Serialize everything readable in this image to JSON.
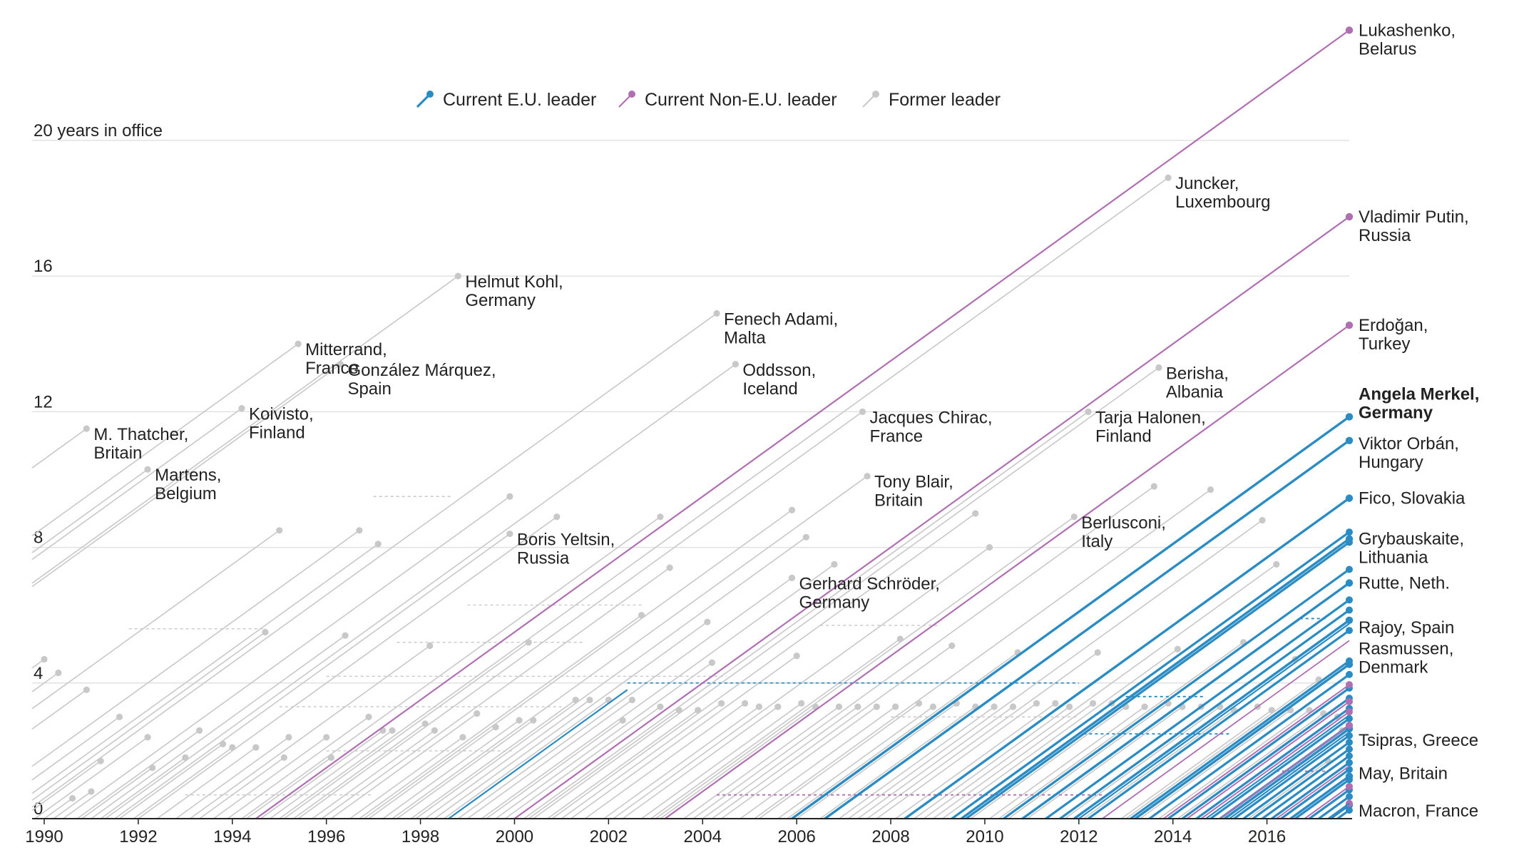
{
  "chart_data": {
    "type": "line",
    "title": "",
    "xlabel": "",
    "ylabel": "",
    "ylabel_top": "20 years in office",
    "x_range": [
      1990,
      2017.75
    ],
    "y_range": [
      0,
      23.3
    ],
    "current_date": 2017.75,
    "grid": true,
    "x_ticks": [
      "1990",
      "1992",
      "1994",
      "1996",
      "1998",
      "2000",
      "2002",
      "2004",
      "2006",
      "2008",
      "2010",
      "2012",
      "2014",
      "2016"
    ],
    "y_ticks": [
      {
        "v": 0,
        "label": "0"
      },
      {
        "v": 4,
        "label": "4"
      },
      {
        "v": 8,
        "label": "8"
      },
      {
        "v": 12,
        "label": "12"
      },
      {
        "v": 16,
        "label": "16"
      },
      {
        "v": 20,
        "label": ""
      }
    ],
    "legend": [
      {
        "key": "eu",
        "label": "Current E.U. leader",
        "color": "#2b8cc4"
      },
      {
        "key": "non_eu",
        "label": "Current Non-E.U. leader",
        "color": "#b06fb2"
      },
      {
        "key": "former",
        "label": "Former leader",
        "color": "#c8c8c8"
      }
    ],
    "colors": {
      "eu": "#2b8cc4",
      "non_eu": "#b06fb2",
      "former": "#c8c8c8"
    },
    "series": [
      {
        "name": "Lukashenko, Belarus",
        "lines": [
          "Lukashenko,",
          "Belarus"
        ],
        "group": "non_eu",
        "start": 1994.5,
        "end": 2017.75,
        "bold": false
      },
      {
        "name": "Vladimir Putin, Russia",
        "lines": [
          "Vladimir Putin,",
          "Russia"
        ],
        "group": "non_eu",
        "start": 2000.0,
        "end": 2017.75,
        "bold": false
      },
      {
        "name": "Erdoğan, Turkey",
        "lines": [
          "Erdoğan,",
          "Turkey"
        ],
        "group": "non_eu",
        "start": 2003.2,
        "end": 2017.75,
        "bold": false
      },
      {
        "name": "Angela Merkel, Germany",
        "lines": [
          "Angela Merkel,",
          "Germany"
        ],
        "group": "eu",
        "start": 2005.9,
        "end": 2017.75,
        "bold": true
      },
      {
        "name": "Viktor Orbán, Hungary",
        "lines": [
          "Viktor Orbán,",
          "Hungary"
        ],
        "group": "eu",
        "start": 2006.6,
        "end": 2017.75,
        "bold": false
      },
      {
        "name": "Fico, Slovakia",
        "lines": [
          "Fico, Slovakia"
        ],
        "group": "eu",
        "start": 2008.3,
        "end": 2017.75,
        "bold": false
      },
      {
        "name": "Grybauskaite, Lithuania",
        "lines": [
          "Grybauskaite,",
          "Lithuania"
        ],
        "group": "eu",
        "start": 2009.5,
        "end": 2017.75,
        "bold": false
      },
      {
        "name": "Rutte, Neth.",
        "lines": [
          "Rutte, Neth."
        ],
        "group": "eu",
        "start": 2010.8,
        "end": 2017.75,
        "bold": false
      },
      {
        "name": "Rajoy, Spain",
        "lines": [
          "Rajoy, Spain"
        ],
        "group": "eu",
        "start": 2011.9,
        "end": 2017.75,
        "bold": false
      },
      {
        "name": "Rasmussen, Denmark",
        "lines": [
          "Rasmussen,",
          "Denmark"
        ],
        "group": "eu",
        "start": 2013.2,
        "end": 2017.75,
        "bold": false
      },
      {
        "name": "Tsipras, Greece",
        "lines": [
          "Tsipras, Greece"
        ],
        "group": "eu",
        "start": 2015.1,
        "end": 2017.75,
        "bold": false
      },
      {
        "name": "May, Britain",
        "lines": [
          "May, Britain"
        ],
        "group": "eu",
        "start": 2016.5,
        "end": 2017.75,
        "bold": false
      },
      {
        "name": "Macron, France",
        "lines": [
          "Macron, France"
        ],
        "group": "eu",
        "start": 2017.35,
        "end": 2017.75,
        "bold": false
      },
      {
        "name": "M. Thatcher, Britain",
        "lines": [
          "M. Thatcher,",
          "Britain"
        ],
        "group": "former",
        "start": 1979.4,
        "end": 1990.9,
        "bold": false
      },
      {
        "name": "Martens, Belgium",
        "lines": [
          "Martens,",
          "Belgium"
        ],
        "group": "former",
        "start": 1981.9,
        "end": 1992.2,
        "bold": false
      },
      {
        "name": "Koivisto, Finland",
        "lines": [
          "Koivisto,",
          "Finland"
        ],
        "group": "former",
        "start": 1982.1,
        "end": 1994.2,
        "bold": false
      },
      {
        "name": "Mitterrand, France",
        "lines": [
          "Mitterrand,",
          "France"
        ],
        "group": "former",
        "start": 1981.4,
        "end": 1995.4,
        "bold": false
      },
      {
        "name": "González Márquez, Spain",
        "lines": [
          "González Márquez,",
          "Spain"
        ],
        "group": "former",
        "start": 1982.9,
        "end": 1996.3,
        "bold": false
      },
      {
        "name": "Helmut Kohl, Germany",
        "lines": [
          "Helmut Kohl,",
          "Germany"
        ],
        "group": "former",
        "start": 1982.8,
        "end": 1998.8,
        "bold": false
      },
      {
        "name": "Boris Yeltsin, Russia",
        "lines": [
          "Boris Yeltsin,",
          "Russia"
        ],
        "group": "former",
        "start": 1991.5,
        "end": 1999.9,
        "bold": false
      },
      {
        "name": "Fenech Adami, Malta",
        "lines": [
          "Fenech Adami,",
          "Malta"
        ],
        "group": "former",
        "start": 1989.4,
        "end": 2004.3,
        "bold": false
      },
      {
        "name": "Oddsson, Iceland",
        "lines": [
          "Oddsson,",
          "Iceland"
        ],
        "group": "former",
        "start": 1991.3,
        "end": 2004.7,
        "bold": false
      },
      {
        "name": "Gerhard Schröder, Germany",
        "lines": [
          "Gerhard Schröder,",
          "Germany"
        ],
        "group": "former",
        "start": 1998.8,
        "end": 2005.9,
        "bold": false
      },
      {
        "name": "Jacques Chirac, France",
        "lines": [
          "Jacques Chirac,",
          "France"
        ],
        "group": "former",
        "start": 1995.4,
        "end": 2007.4,
        "bold": false
      },
      {
        "name": "Tony Blair, Britain",
        "lines": [
          "Tony Blair,",
          "Britain"
        ],
        "group": "former",
        "start": 1997.4,
        "end": 2007.5,
        "bold": false
      },
      {
        "name": "Berlusconi, Italy",
        "lines": [
          "Berlusconi,",
          "Italy"
        ],
        "group": "former",
        "start": 2003.0,
        "end": 2011.9,
        "bold": false
      },
      {
        "name": "Tarja Halonen, Finland",
        "lines": [
          "Tarja Halonen,",
          "Finland"
        ],
        "group": "former",
        "start": 2000.2,
        "end": 2012.2,
        "bold": false
      },
      {
        "name": "Berisha, Albania",
        "lines": [
          "Berisha,",
          "Albania"
        ],
        "group": "former",
        "start": 2000.4,
        "end": 2013.7,
        "bold": false
      },
      {
        "name": "Juncker, Luxembourg",
        "lines": [
          "Juncker,",
          "Luxembourg"
        ],
        "group": "former",
        "start": 1995.0,
        "end": 2013.9,
        "bold": false
      }
    ],
    "dashed_gaps": [
      {
        "group": "former",
        "x0": 1997.0,
        "x1": 1998.7,
        "y": 9.5
      },
      {
        "group": "former",
        "x0": 1991.8,
        "x1": 1994.7,
        "y": 5.6
      },
      {
        "group": "former",
        "x0": 1999.0,
        "x1": 2002.7,
        "y": 6.3
      },
      {
        "group": "former",
        "x0": 1997.5,
        "x1": 2001.5,
        "y": 5.2
      },
      {
        "group": "former",
        "x0": 1996.0,
        "x1": 2004.5,
        "y": 4.2
      },
      {
        "group": "former",
        "x0": 1995.0,
        "x1": 2001.0,
        "y": 3.3
      },
      {
        "group": "former",
        "x0": 2006.5,
        "x1": 2009.0,
        "y": 5.7
      },
      {
        "group": "former",
        "x0": 2004.5,
        "x1": 2009.5,
        "y": 4.0
      },
      {
        "group": "former",
        "x0": 1996.0,
        "x1": 2000.0,
        "y": 2.0
      },
      {
        "group": "former",
        "x0": 1993.0,
        "x1": 1997.0,
        "y": 0.7
      },
      {
        "group": "former",
        "x0": 2008.0,
        "x1": 2012.0,
        "y": 3.0
      },
      {
        "group": "eu",
        "x0": 2002.4,
        "x1": 2012.0,
        "y": 4.0
      },
      {
        "group": "eu",
        "x0": 2013.0,
        "x1": 2014.7,
        "y": 3.6
      },
      {
        "group": "eu",
        "x0": 2012.1,
        "x1": 2015.2,
        "y": 2.5
      },
      {
        "group": "eu",
        "x0": 2016.7,
        "x1": 2017.3,
        "y": 5.9
      },
      {
        "group": "non_eu",
        "x0": 2004.3,
        "x1": 2012.5,
        "y": 0.7
      },
      {
        "group": "non_eu",
        "x0": 2016.2,
        "x1": 2017.3,
        "y": 1.4
      }
    ],
    "eu_segments": [
      {
        "x0": 1998.6,
        "x1": 2002.4
      },
      {
        "x0": 2012.0,
        "x1": 2017.75
      },
      {
        "x0": 2014.7,
        "x1": 2017.75
      },
      {
        "x0": 2015.2,
        "x1": 2017.75
      },
      {
        "x0": 2017.3,
        "x1": 2017.75
      }
    ],
    "non_eu_segments": [
      {
        "x0": 2003.2,
        "x1": 2004.3
      },
      {
        "x0": 2012.5,
        "x1": 2017.75
      },
      {
        "x0": 2016.2,
        "x1": 2017.75
      }
    ],
    "extra_current_eu_starts": [
      2009.3,
      2009.6,
      2010.4,
      2011.3,
      2011.6,
      2012.2,
      2013.1,
      2013.5,
      2013.9,
      2014.2,
      2014.5,
      2014.8,
      2015.0,
      2015.3,
      2015.5,
      2015.7,
      2015.9,
      2016.1,
      2016.3,
      2016.6,
      2016.9,
      2017.1,
      2017.5
    ],
    "extra_current_non_eu_starts": [
      2013.8,
      2014.3,
      2014.6,
      2015.0,
      2016.8,
      2017.3
    ],
    "former_leaders": [
      {
        "s": 1985.3,
        "e": 1990.0
      },
      {
        "s": 1986.0,
        "e": 1990.3
      },
      {
        "s": 1987.1,
        "e": 1990.9
      },
      {
        "s": 1988.6,
        "e": 1991.6
      },
      {
        "s": 1989.5,
        "e": 1991.2
      },
      {
        "s": 1990.0,
        "e": 1990.6
      },
      {
        "s": 1990.2,
        "e": 1991.0
      },
      {
        "s": 1990.8,
        "e": 1992.3
      },
      {
        "s": 1989.8,
        "e": 1992.2
      },
      {
        "s": 1990.7,
        "e": 1993.3
      },
      {
        "s": 1991.2,
        "e": 1993.0
      },
      {
        "s": 1991.6,
        "e": 1993.8
      },
      {
        "s": 1991.9,
        "e": 1994.0
      },
      {
        "s": 1992.4,
        "e": 1994.5
      },
      {
        "s": 1992.8,
        "e": 1995.2
      },
      {
        "s": 1993.3,
        "e": 1995.1
      },
      {
        "s": 1993.6,
        "e": 1996.0
      },
      {
        "s": 1993.9,
        "e": 1996.9
      },
      {
        "s": 1994.3,
        "e": 1996.1
      },
      {
        "s": 1994.6,
        "e": 1997.2
      },
      {
        "s": 1994.8,
        "e": 1997.4
      },
      {
        "s": 1995.3,
        "e": 1998.1
      },
      {
        "s": 1995.7,
        "e": 1998.3
      },
      {
        "s": 1996.1,
        "e": 1999.2
      },
      {
        "s": 1996.5,
        "e": 1998.9
      },
      {
        "s": 1996.9,
        "e": 1999.6
      },
      {
        "s": 1997.2,
        "e": 2000.1
      },
      {
        "s": 1997.5,
        "e": 2000.4
      },
      {
        "s": 1997.8,
        "e": 2001.3
      },
      {
        "s": 1998.1,
        "e": 2001.6
      },
      {
        "s": 1998.5,
        "e": 2002.0
      },
      {
        "s": 1999.0,
        "e": 2002.5
      },
      {
        "s": 1999.4,
        "e": 2002.3
      },
      {
        "s": 1999.8,
        "e": 2003.1
      },
      {
        "s": 2000.3,
        "e": 2003.5
      },
      {
        "s": 2000.7,
        "e": 2003.9
      },
      {
        "s": 2001.0,
        "e": 2004.4
      },
      {
        "s": 2001.5,
        "e": 2004.9
      },
      {
        "s": 2001.9,
        "e": 2005.2
      },
      {
        "s": 2002.3,
        "e": 2005.6
      },
      {
        "s": 2002.7,
        "e": 2006.1
      },
      {
        "s": 2003.1,
        "e": 2006.4
      },
      {
        "s": 2003.6,
        "e": 2006.9
      },
      {
        "s": 2004.0,
        "e": 2007.3
      },
      {
        "s": 2004.4,
        "e": 2007.7
      },
      {
        "s": 2004.8,
        "e": 2008.1
      },
      {
        "s": 2005.2,
        "e": 2008.6
      },
      {
        "s": 2005.6,
        "e": 2008.9
      },
      {
        "s": 2006.0,
        "e": 2009.4
      },
      {
        "s": 2006.5,
        "e": 2009.8
      },
      {
        "s": 2006.9,
        "e": 2010.2
      },
      {
        "s": 2007.3,
        "e": 2010.6
      },
      {
        "s": 2007.7,
        "e": 2011.1
      },
      {
        "s": 2008.1,
        "e": 2011.5
      },
      {
        "s": 2008.5,
        "e": 2011.8
      },
      {
        "s": 2008.9,
        "e": 2012.3
      },
      {
        "s": 2009.3,
        "e": 2012.7
      },
      {
        "s": 2009.7,
        "e": 2013.0
      },
      {
        "s": 2010.1,
        "e": 2013.4
      },
      {
        "s": 2010.5,
        "e": 2013.9
      },
      {
        "s": 2010.9,
        "e": 2014.2
      },
      {
        "s": 2011.3,
        "e": 2014.6
      },
      {
        "s": 2011.7,
        "e": 2015.0
      },
      {
        "s": 2012.1,
        "e": 2015.3
      },
      {
        "s": 2012.5,
        "e": 2015.8
      },
      {
        "s": 2012.9,
        "e": 2016.1
      },
      {
        "s": 2013.3,
        "e": 2016.5
      },
      {
        "s": 2013.7,
        "e": 2016.9
      },
      {
        "s": 2014.1,
        "e": 2017.2
      },
      {
        "s": 2014.5,
        "e": 2017.5
      },
      {
        "s": 2015.0,
        "e": 2017.6
      },
      {
        "s": 2015.6,
        "e": 2017.3
      },
      {
        "s": 1986.5,
        "e": 1995.0
      },
      {
        "s": 1988.2,
        "e": 1996.7
      },
      {
        "s": 1989.0,
        "e": 1997.1
      },
      {
        "s": 1990.4,
        "e": 1999.9
      },
      {
        "s": 1992.0,
        "e": 2000.9
      },
      {
        "s": 1994.2,
        "e": 2003.1
      },
      {
        "s": 1995.9,
        "e": 2003.3
      },
      {
        "s": 1996.8,
        "e": 2005.9
      },
      {
        "s": 1997.9,
        "e": 2006.2
      },
      {
        "s": 1999.3,
        "e": 2006.8
      },
      {
        "s": 2000.8,
        "e": 2009.8
      },
      {
        "s": 2002.1,
        "e": 2010.1
      },
      {
        "s": 2003.8,
        "e": 2013.6
      },
      {
        "s": 2005.1,
        "e": 2014.8
      },
      {
        "s": 2007.1,
        "e": 2015.9
      },
      {
        "s": 2008.7,
        "e": 2016.2
      },
      {
        "s": 1989.2,
        "e": 1994.7
      },
      {
        "s": 1991.0,
        "e": 1996.4
      },
      {
        "s": 1993.1,
        "e": 1998.2
      },
      {
        "s": 1995.1,
        "e": 2000.3
      },
      {
        "s": 1996.7,
        "e": 2002.7
      },
      {
        "s": 1998.3,
        "e": 2004.1
      },
      {
        "s": 1999.6,
        "e": 2004.2
      },
      {
        "s": 2001.2,
        "e": 2006.0
      },
      {
        "s": 2002.9,
        "e": 2008.2
      },
      {
        "s": 2004.2,
        "e": 2009.3
      },
      {
        "s": 2005.8,
        "e": 2010.7
      },
      {
        "s": 2007.5,
        "e": 2012.4
      },
      {
        "s": 2009.1,
        "e": 2014.1
      },
      {
        "s": 2010.3,
        "e": 2015.5
      },
      {
        "s": 2011.9,
        "e": 2016.6
      },
      {
        "s": 2013.0,
        "e": 2017.1
      }
    ]
  }
}
